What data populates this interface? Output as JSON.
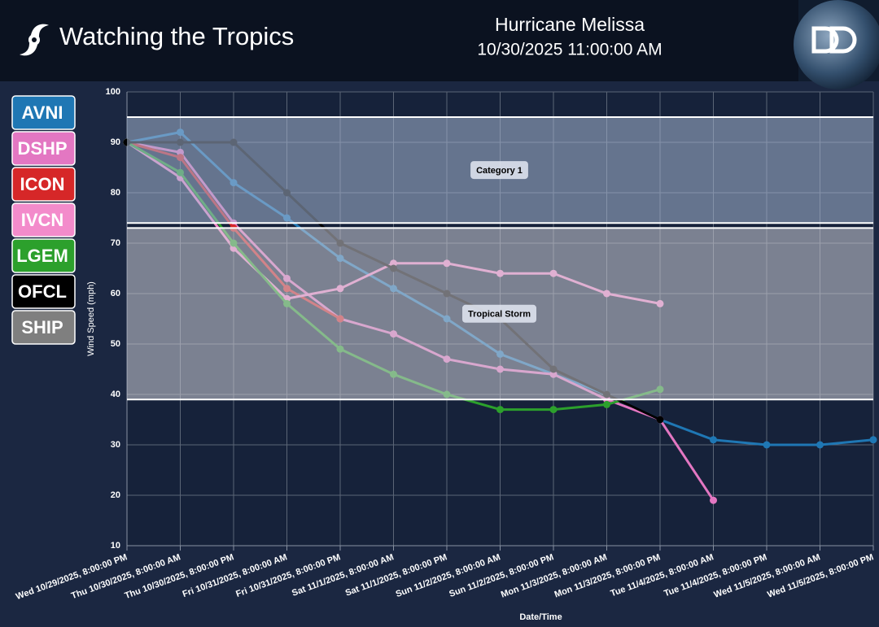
{
  "header": {
    "brand": "Watching the Tropics",
    "storm": "Hurricane Melissa",
    "time": "10/30/2025 11:00:00 AM"
  },
  "chart_data": {
    "type": "line",
    "xlabel": "Date/Time",
    "ylabel": "Wind Speed (mph)",
    "categories": [
      "Wed 10/29/2025, 8:00:00 PM",
      "Thu 10/30/2025, 8:00:00 AM",
      "Thu 10/30/2025, 8:00:00 PM",
      "Fri 10/31/2025, 8:00:00 AM",
      "Fri 10/31/2025, 8:00:00 PM",
      "Sat 11/1/2025, 8:00:00 AM",
      "Sat 11/1/2025, 8:00:00 PM",
      "Sun 11/2/2025, 8:00:00 AM",
      "Sun 11/2/2025, 8:00:00 PM",
      "Mon 11/3/2025, 8:00:00 AM",
      "Mon 11/3/2025, 8:00:00 PM",
      "Tue 11/4/2025, 8:00:00 AM",
      "Tue 11/4/2025, 8:00:00 PM",
      "Wed 11/5/2025, 8:00:00 AM",
      "Wed 11/5/2025, 8:00:00 PM"
    ],
    "ylim": [
      10,
      100
    ],
    "yticks": [
      10,
      20,
      30,
      40,
      50,
      60,
      70,
      80,
      90,
      100
    ],
    "grid": true,
    "bands": [
      {
        "label": "Category 1",
        "from": 74,
        "to": 95,
        "color": "#a7b8d4"
      },
      {
        "label": "Tropical Storm",
        "from": 39,
        "to": 73,
        "color": "#d0d0d8"
      }
    ],
    "series": [
      {
        "name": "AVNI",
        "color": "#1f77b4",
        "values": [
          90,
          92,
          82,
          75,
          67,
          61,
          55,
          48,
          44,
          40,
          35,
          31,
          30,
          30,
          31
        ]
      },
      {
        "name": "DSHP",
        "color": "#e377c2",
        "values": [
          90,
          88,
          74,
          63,
          55,
          52,
          47,
          45,
          44,
          39,
          35,
          19,
          null,
          null,
          null
        ]
      },
      {
        "name": "ICON",
        "color": "#d62728",
        "values": [
          90,
          87,
          73,
          61,
          55,
          null,
          null,
          null,
          null,
          null,
          null,
          null,
          null,
          null,
          null
        ]
      },
      {
        "name": "IVCN",
        "color": "#f38bcb",
        "values": [
          90,
          83,
          69,
          59,
          61,
          66,
          66,
          64,
          64,
          60,
          58,
          null,
          null,
          null,
          null
        ]
      },
      {
        "name": "LGEM",
        "color": "#2ca02c",
        "values": [
          90,
          84,
          70,
          58,
          49,
          44,
          40,
          37,
          37,
          38,
          41,
          null,
          null,
          null,
          null
        ]
      },
      {
        "name": "OFCL",
        "color": "#000000",
        "values": [
          90,
          90,
          90,
          80,
          70,
          65,
          60,
          55,
          45,
          40,
          35,
          null,
          null,
          null,
          null
        ]
      },
      {
        "name": "SHIP",
        "color": "#7f7f7f",
        "values": [
          null,
          null,
          null,
          null,
          null,
          null,
          null,
          null,
          null,
          null,
          null,
          null,
          null,
          null,
          null
        ]
      }
    ]
  }
}
